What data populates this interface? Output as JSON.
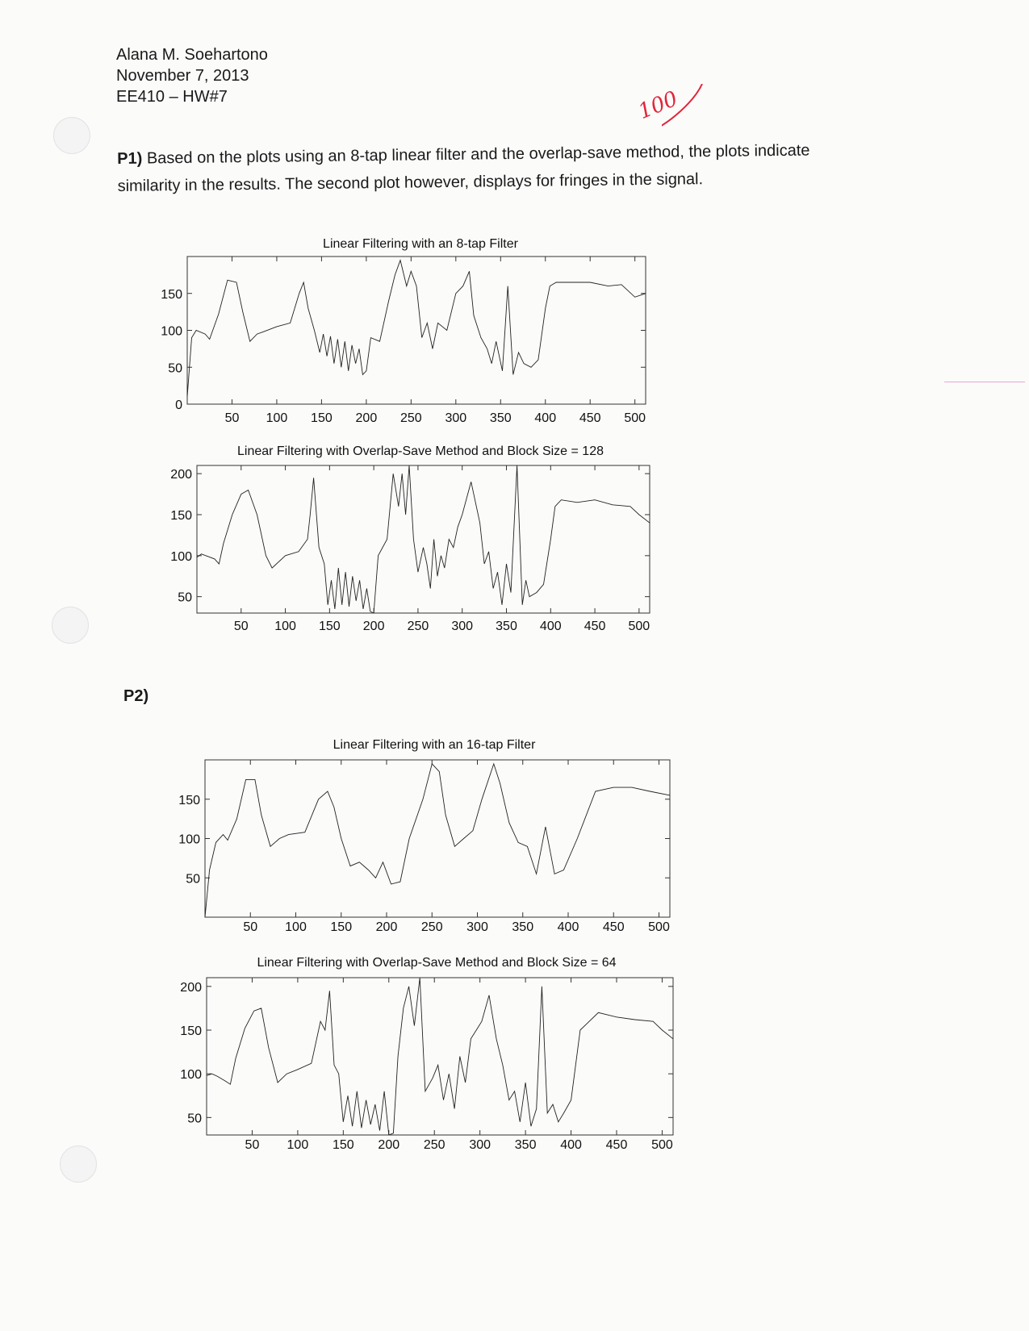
{
  "header": {
    "name": "Alana M. Soehartono",
    "date": "November 7, 2013",
    "course": "EE410 – HW#7"
  },
  "grade": "100",
  "p1": {
    "label": "P1)",
    "text": "Based on the plots using an 8-tap linear filter and the overlap-save method, the plots indicate similarity in the results. The second plot however, displays for fringes in the signal."
  },
  "p2": {
    "label": "P2)"
  },
  "chart_data": [
    {
      "type": "line",
      "title": "Linear Filtering with an 8-tap Filter",
      "xlim": [
        0,
        512
      ],
      "ylim": [
        0,
        200
      ],
      "xticks": [
        50,
        100,
        150,
        200,
        250,
        300,
        350,
        400,
        450,
        500
      ],
      "yticks": [
        0,
        50,
        100,
        150
      ],
      "grid": false,
      "series": [
        {
          "x": [
            0,
            5,
            10,
            20,
            25,
            35,
            45,
            55,
            62,
            70,
            78,
            85,
            100,
            115,
            125,
            130,
            135,
            142,
            148,
            152,
            156,
            160,
            164,
            168,
            172,
            176,
            180,
            184,
            188,
            192,
            196,
            200,
            205,
            215,
            225,
            232,
            238,
            245,
            250,
            256,
            262,
            268,
            274,
            280,
            290,
            300,
            308,
            315,
            320,
            328,
            335,
            340,
            345,
            352,
            358,
            364,
            370,
            376,
            384,
            392,
            400,
            405,
            412,
            430,
            450,
            470,
            485,
            500,
            512
          ],
          "y": [
            10,
            90,
            100,
            95,
            88,
            122,
            168,
            165,
            125,
            85,
            95,
            98,
            105,
            110,
            150,
            165,
            130,
            100,
            70,
            95,
            65,
            92,
            55,
            88,
            50,
            85,
            45,
            80,
            55,
            75,
            40,
            45,
            90,
            85,
            140,
            175,
            195,
            160,
            180,
            160,
            90,
            110,
            75,
            110,
            100,
            150,
            160,
            180,
            120,
            90,
            75,
            55,
            85,
            45,
            160,
            40,
            70,
            55,
            50,
            60,
            130,
            160,
            165,
            165,
            165,
            160,
            162,
            145,
            150
          ]
        }
      ]
    },
    {
      "type": "line",
      "title": "Linear Filtering with Overlap-Save Method and Block Size = 128",
      "xlim": [
        0,
        512
      ],
      "ylim": [
        30,
        210
      ],
      "xticks": [
        50,
        100,
        150,
        200,
        250,
        300,
        350,
        400,
        450,
        500
      ],
      "yticks": [
        50,
        100,
        150,
        200
      ],
      "grid": false,
      "series": [
        {
          "x": [
            0,
            5,
            10,
            20,
            25,
            30,
            40,
            50,
            58,
            68,
            78,
            85,
            100,
            115,
            125,
            128,
            132,
            138,
            144,
            148,
            152,
            156,
            160,
            164,
            168,
            172,
            176,
            180,
            184,
            188,
            192,
            196,
            200,
            205,
            215,
            222,
            228,
            232,
            236,
            240,
            245,
            250,
            256,
            260,
            264,
            268,
            272,
            276,
            280,
            285,
            290,
            295,
            300,
            310,
            320,
            325,
            330,
            335,
            340,
            345,
            350,
            355,
            362,
            368,
            372,
            376,
            384,
            392,
            400,
            405,
            412,
            430,
            450,
            470,
            490,
            500,
            512
          ],
          "y": [
            98,
            102,
            100,
            96,
            90,
            115,
            150,
            175,
            180,
            150,
            100,
            85,
            100,
            105,
            120,
            150,
            195,
            110,
            90,
            40,
            70,
            35,
            85,
            40,
            80,
            38,
            75,
            45,
            70,
            35,
            60,
            32,
            30,
            100,
            120,
            200,
            160,
            200,
            150,
            210,
            120,
            80,
            110,
            90,
            60,
            120,
            75,
            100,
            85,
            120,
            110,
            135,
            150,
            190,
            140,
            90,
            105,
            60,
            80,
            40,
            90,
            55,
            210,
            40,
            70,
            50,
            55,
            65,
            120,
            160,
            168,
            165,
            168,
            162,
            160,
            150,
            140
          ]
        }
      ]
    },
    {
      "type": "line",
      "title": "Linear Filtering with an 16-tap Filter",
      "xlim": [
        0,
        512
      ],
      "ylim": [
        0,
        200
      ],
      "xticks": [
        50,
        100,
        150,
        200,
        250,
        300,
        350,
        400,
        450,
        500
      ],
      "yticks": [
        50,
        100,
        150
      ],
      "grid": false,
      "series": [
        {
          "x": [
            0,
            5,
            12,
            20,
            25,
            35,
            45,
            55,
            62,
            72,
            82,
            92,
            110,
            125,
            135,
            142,
            150,
            160,
            170,
            180,
            188,
            196,
            205,
            215,
            225,
            240,
            250,
            258,
            265,
            275,
            285,
            295,
            305,
            318,
            325,
            335,
            345,
            355,
            365,
            375,
            385,
            395,
            410,
            430,
            450,
            470,
            490,
            512
          ],
          "y": [
            0,
            60,
            95,
            105,
            98,
            125,
            175,
            175,
            130,
            90,
            100,
            105,
            108,
            150,
            160,
            140,
            100,
            65,
            70,
            60,
            50,
            70,
            42,
            45,
            100,
            150,
            195,
            185,
            130,
            90,
            100,
            110,
            150,
            195,
            170,
            120,
            95,
            90,
            55,
            115,
            55,
            60,
            100,
            160,
            165,
            165,
            160,
            155
          ]
        }
      ]
    },
    {
      "type": "line",
      "title": "Linear Filtering with Overlap-Save Method and Block Size = 64",
      "xlim": [
        0,
        512
      ],
      "ylim": [
        30,
        210
      ],
      "xticks": [
        50,
        100,
        150,
        200,
        250,
        300,
        350,
        400,
        450,
        500
      ],
      "yticks": [
        50,
        100,
        150,
        200
      ],
      "grid": false,
      "series": [
        {
          "x": [
            0,
            6,
            12,
            20,
            26,
            32,
            42,
            52,
            60,
            68,
            78,
            88,
            100,
            115,
            125,
            130,
            135,
            140,
            145,
            150,
            155,
            160,
            165,
            170,
            175,
            180,
            185,
            190,
            195,
            200,
            205,
            210,
            216,
            222,
            228,
            234,
            240,
            248,
            254,
            260,
            266,
            272,
            278,
            284,
            290,
            296,
            302,
            310,
            318,
            325,
            332,
            338,
            344,
            350,
            356,
            362,
            368,
            374,
            380,
            386,
            392,
            400,
            410,
            430,
            450,
            470,
            490,
            500,
            512
          ],
          "y": [
            98,
            100,
            97,
            92,
            88,
            118,
            152,
            172,
            175,
            130,
            90,
            100,
            105,
            112,
            160,
            150,
            195,
            110,
            100,
            45,
            75,
            40,
            80,
            38,
            70,
            42,
            65,
            35,
            80,
            30,
            32,
            120,
            175,
            200,
            155,
            210,
            80,
            95,
            110,
            70,
            100,
            60,
            120,
            90,
            140,
            150,
            160,
            190,
            140,
            110,
            70,
            80,
            45,
            90,
            40,
            60,
            200,
            55,
            65,
            45,
            55,
            70,
            150,
            170,
            165,
            162,
            160,
            150,
            140
          ]
        }
      ]
    }
  ]
}
